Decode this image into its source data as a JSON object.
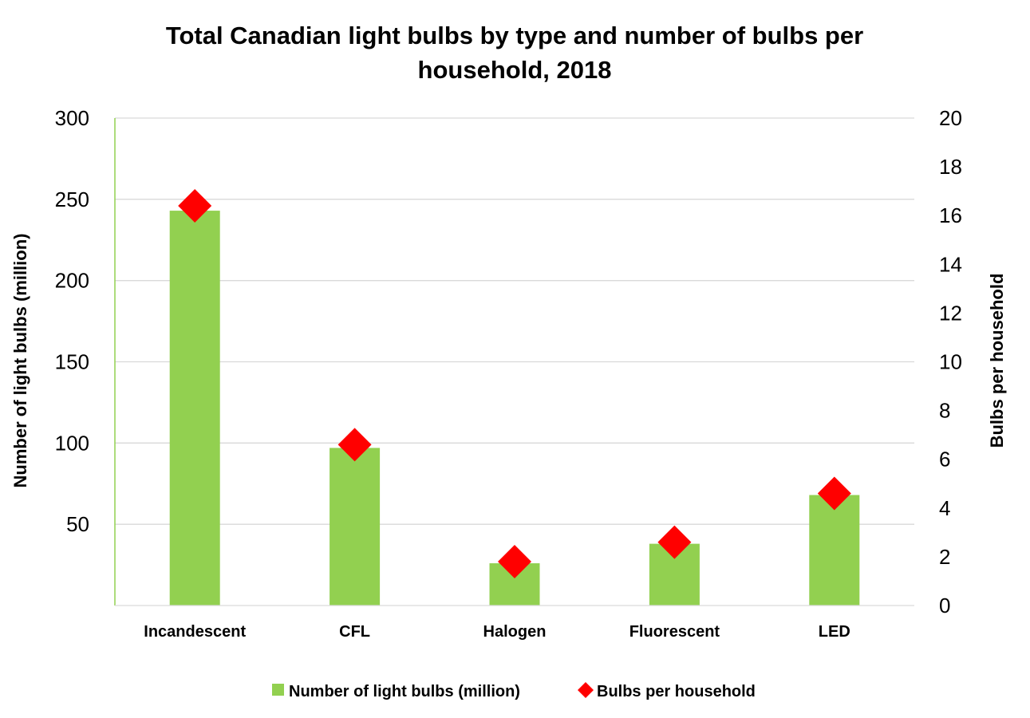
{
  "chart_data": {
    "type": "bar",
    "title": "Total Canadian light bulbs by type and number of bulbs per household, 2018",
    "title_lines": [
      "Total Canadian light bulbs by type and number of bulbs per",
      "household, 2018"
    ],
    "categories": [
      "Incandescent",
      "CFL",
      "Halogen",
      "Fluorescent",
      "LED"
    ],
    "series": [
      {
        "name": "Number of light bulbs (million)",
        "type": "bar",
        "axis": "left",
        "color": "#92d050",
        "values": [
          243,
          97,
          26,
          38,
          68
        ]
      },
      {
        "name": "Bulbs per household",
        "type": "scatter",
        "marker": "diamond",
        "axis": "right",
        "color": "#ff0000",
        "values": [
          16.4,
          6.6,
          1.8,
          2.6,
          4.6
        ]
      }
    ],
    "ylabel": "Number of light bulbs (million)",
    "y2label": "Bulbs per household",
    "ylim": [
      0,
      300
    ],
    "y2lim": [
      0,
      20
    ],
    "yticks": [
      50,
      100,
      150,
      200,
      250,
      300
    ],
    "y2ticks": [
      0,
      2,
      4,
      6,
      8,
      10,
      12,
      14,
      16,
      18,
      20
    ],
    "grid": true,
    "legend": "bottom"
  }
}
